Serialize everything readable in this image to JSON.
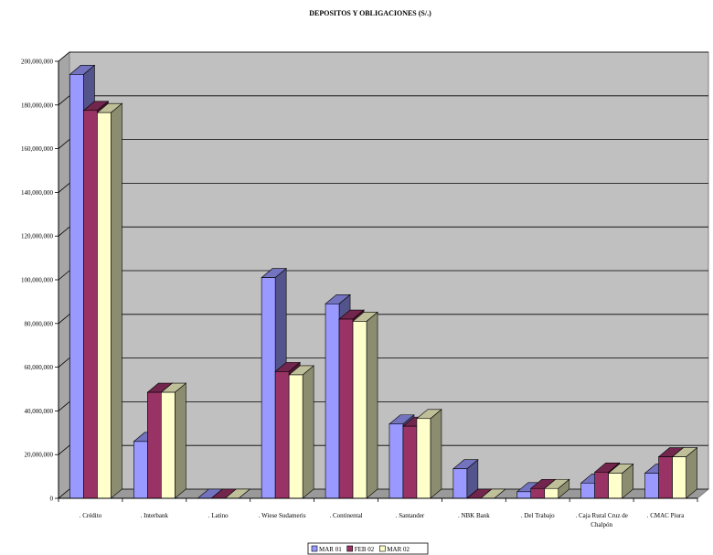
{
  "chart_data": {
    "type": "bar",
    "title": "DEPOSITOS Y OBLIGACIONES (S/.)",
    "xlabel": "",
    "ylabel": "",
    "ylim": [
      0,
      200000000
    ],
    "yticks": [
      "0",
      "20,000,000",
      "40,000,000",
      "60,000,000",
      "80,000,000",
      "100,000,000",
      "120,000,000",
      "140,000,000",
      "160,000,000",
      "180,000,000",
      "200,000,000"
    ],
    "categories": [
      ". Crédito",
      ". Interbank",
      ". Latino",
      ". Wiese Sudameris",
      ". Continental",
      ". Santander",
      ". NBK Bank",
      ". Del Trabajo",
      ". Caja Rural Cruz de Chalpón",
      ". CMAC Piura"
    ],
    "series": [
      {
        "name": "MAR 01",
        "color": "#9999ff",
        "values": [
          194000000,
          26000000,
          0,
          101000000,
          89000000,
          34000000,
          13500000,
          3000000,
          7000000,
          11500000
        ]
      },
      {
        "name": "FEB 02",
        "color": "#993366",
        "values": [
          177500000,
          48500000,
          0,
          58000000,
          82000000,
          33000000,
          0,
          4500000,
          12000000,
          19000000
        ]
      },
      {
        "name": "MAR 02",
        "color": "#ffffcc",
        "values": [
          176500000,
          48500000,
          0,
          56500000,
          81000000,
          36500000,
          0,
          4500000,
          11500000,
          19000000
        ]
      }
    ],
    "grid": true,
    "legend": "bottom",
    "style": "3d-clustered-bar"
  }
}
